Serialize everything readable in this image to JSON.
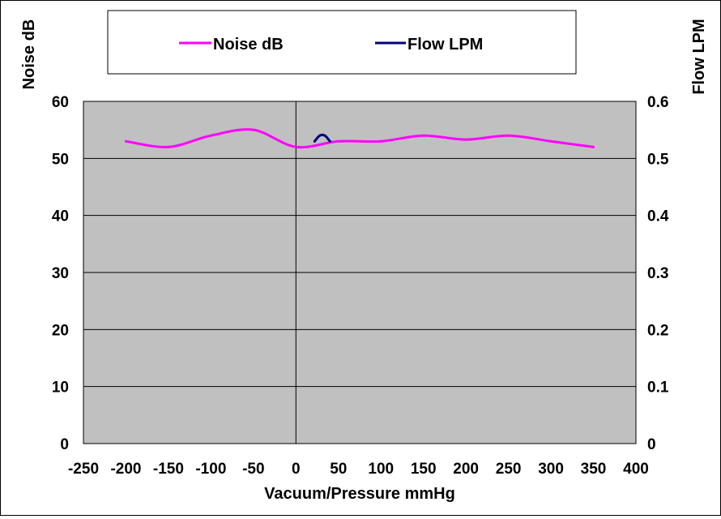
{
  "chart_data": {
    "type": "line",
    "title": "",
    "xlabel": "Vacuum/Pressure mmHg",
    "ylabel_left": "Noise dB",
    "ylabel_right": "Flow LPM",
    "xlim": [
      -250,
      400
    ],
    "x_ticks": [
      "-250",
      "-200",
      "-150",
      "-100",
      "-50",
      "0",
      "50",
      "100",
      "150",
      "200",
      "250",
      "300",
      "350",
      "400"
    ],
    "x_tick_values": [
      -250,
      -200,
      -150,
      -100,
      -50,
      0,
      50,
      100,
      150,
      200,
      250,
      300,
      350,
      400
    ],
    "ylim_left": [
      0,
      60
    ],
    "y_ticks_left": [
      "0",
      "10",
      "20",
      "30",
      "40",
      "50",
      "60"
    ],
    "y_tick_values_left": [
      0,
      10,
      20,
      30,
      40,
      50,
      60
    ],
    "ylim_right": [
      0,
      0.6
    ],
    "y_ticks_right": [
      "0",
      "0.1",
      "0.2",
      "0.3",
      "0.4",
      "0.5",
      "0.6"
    ],
    "y_tick_values_right": [
      0,
      0.1,
      0.2,
      0.3,
      0.4,
      0.5,
      0.6
    ],
    "grid": "horizontal",
    "legend_position": "top",
    "plot_background": "#c0c0c0",
    "series": [
      {
        "name": "Noise dB",
        "axis": "left",
        "color": "#ff00ff",
        "x": [
          -200,
          -150,
          -100,
          -50,
          0,
          50,
          100,
          150,
          200,
          250,
          300,
          350
        ],
        "values": [
          53,
          52,
          54,
          55,
          52,
          53,
          53,
          54,
          53.3,
          54,
          53,
          52
        ]
      },
      {
        "name": "Flow LPM",
        "axis": "right",
        "color": "#000080",
        "x": [
          22,
          28,
          34,
          40
        ],
        "values": [
          0.53,
          0.54,
          0.54,
          0.53
        ]
      }
    ]
  }
}
